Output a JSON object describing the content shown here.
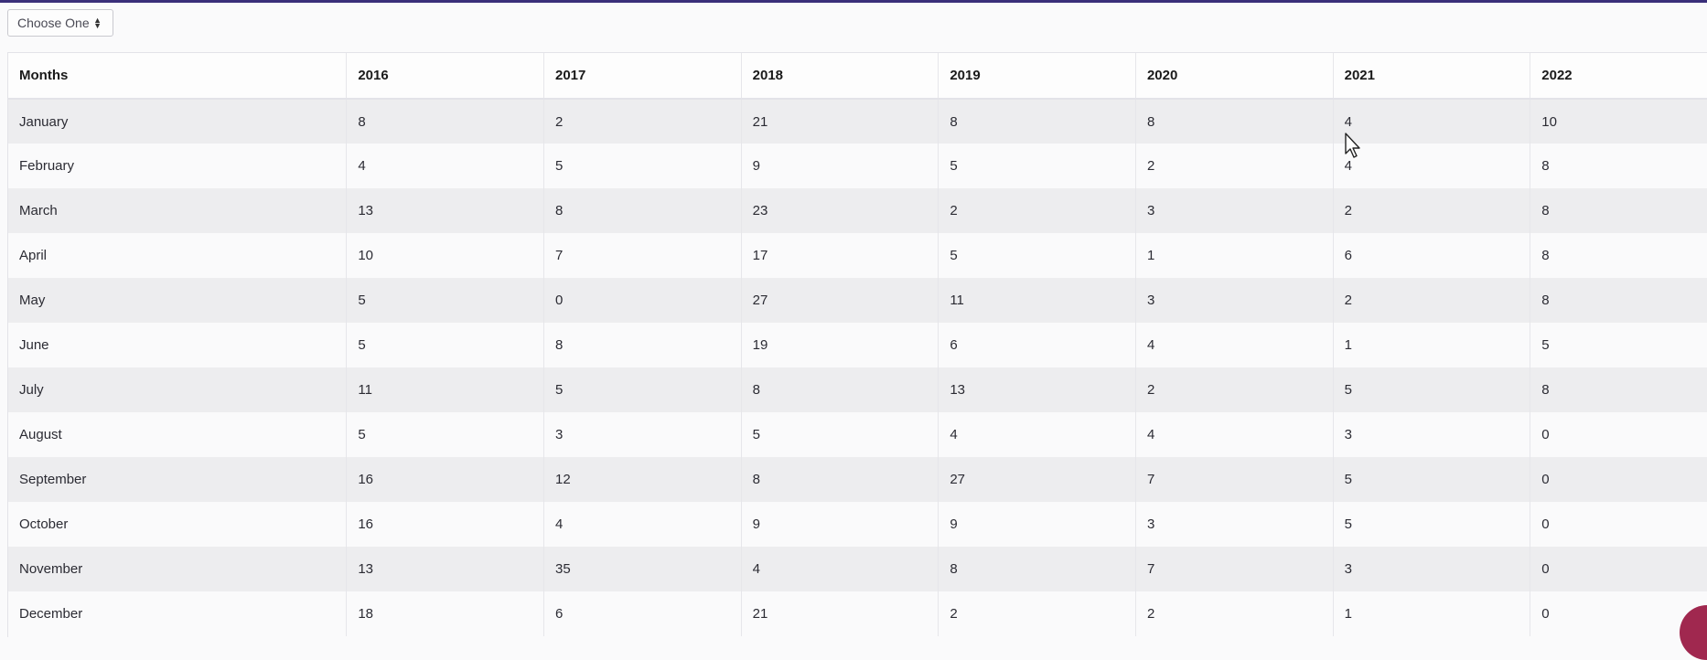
{
  "select": {
    "label": "Choose One",
    "icon": "sort-icon"
  },
  "table": {
    "headers": [
      "Months",
      "2016",
      "2017",
      "2018",
      "2019",
      "2020",
      "2021",
      "2022"
    ],
    "rows": [
      [
        "January",
        "8",
        "2",
        "21",
        "8",
        "8",
        "4",
        "10"
      ],
      [
        "February",
        "4",
        "5",
        "9",
        "5",
        "2",
        "4",
        "8"
      ],
      [
        "March",
        "13",
        "8",
        "23",
        "2",
        "3",
        "2",
        "8"
      ],
      [
        "April",
        "10",
        "7",
        "17",
        "5",
        "1",
        "6",
        "8"
      ],
      [
        "May",
        "5",
        "0",
        "27",
        "11",
        "3",
        "2",
        "8"
      ],
      [
        "June",
        "5",
        "8",
        "19",
        "6",
        "4",
        "1",
        "5"
      ],
      [
        "July",
        "11",
        "5",
        "8",
        "13",
        "2",
        "5",
        "8"
      ],
      [
        "August",
        "5",
        "3",
        "5",
        "4",
        "4",
        "3",
        "0"
      ],
      [
        "September",
        "16",
        "12",
        "8",
        "27",
        "7",
        "5",
        "0"
      ],
      [
        "October",
        "16",
        "4",
        "9",
        "9",
        "3",
        "5",
        "0"
      ],
      [
        "November",
        "13",
        "35",
        "4",
        "8",
        "7",
        "3",
        "0"
      ],
      [
        "December",
        "18",
        "6",
        "21",
        "2",
        "2",
        "1",
        "0"
      ]
    ]
  },
  "colors": {
    "top_bar": "#3a2f7a",
    "row_striped": "#ededef",
    "row_plain": "#fafafb",
    "fab": "#a0284f"
  }
}
